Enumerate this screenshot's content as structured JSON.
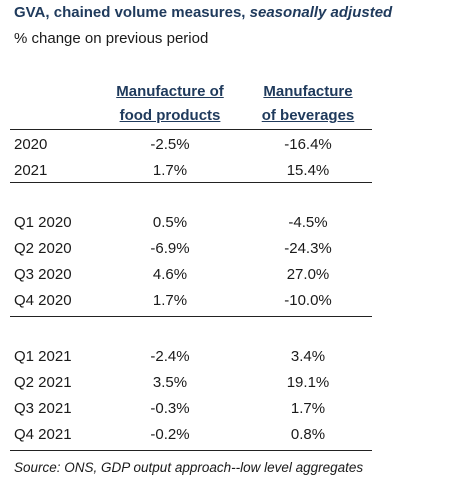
{
  "chart_data": {
    "type": "table",
    "title_main": "GVA, chained volume measures, ",
    "title_italic": "seasonally adjusted",
    "subtitle": "% change on previous period",
    "columns": [
      {
        "line1": "Manufacture of",
        "line2": "food products"
      },
      {
        "line1": "Manufacture",
        "line2": "of beverages"
      }
    ],
    "groups": [
      {
        "rows": [
          {
            "label": "2020",
            "food": "-2.5%",
            "beverages": "-16.4%"
          },
          {
            "label": "2021",
            "food": "1.7%",
            "beverages": "15.4%"
          }
        ]
      },
      {
        "rows": [
          {
            "label": "Q1 2020",
            "food": "0.5%",
            "beverages": "-4.5%"
          },
          {
            "label": "Q2 2020",
            "food": "-6.9%",
            "beverages": "-24.3%"
          },
          {
            "label": "Q3 2020",
            "food": "4.6%",
            "beverages": "27.0%"
          },
          {
            "label": "Q4 2020",
            "food": "1.7%",
            "beverages": "-10.0%"
          }
        ]
      },
      {
        "rows": [
          {
            "label": "Q1 2021",
            "food": "-2.4%",
            "beverages": "3.4%"
          },
          {
            "label": "Q2 2021",
            "food": "3.5%",
            "beverages": "19.1%"
          },
          {
            "label": "Q3 2021",
            "food": "-0.3%",
            "beverages": "1.7%"
          },
          {
            "label": "Q4 2021",
            "food": "-0.2%",
            "beverages": "0.8%"
          }
        ]
      }
    ],
    "source": "Source: ONS, GDP output approach--low level aggregates"
  }
}
